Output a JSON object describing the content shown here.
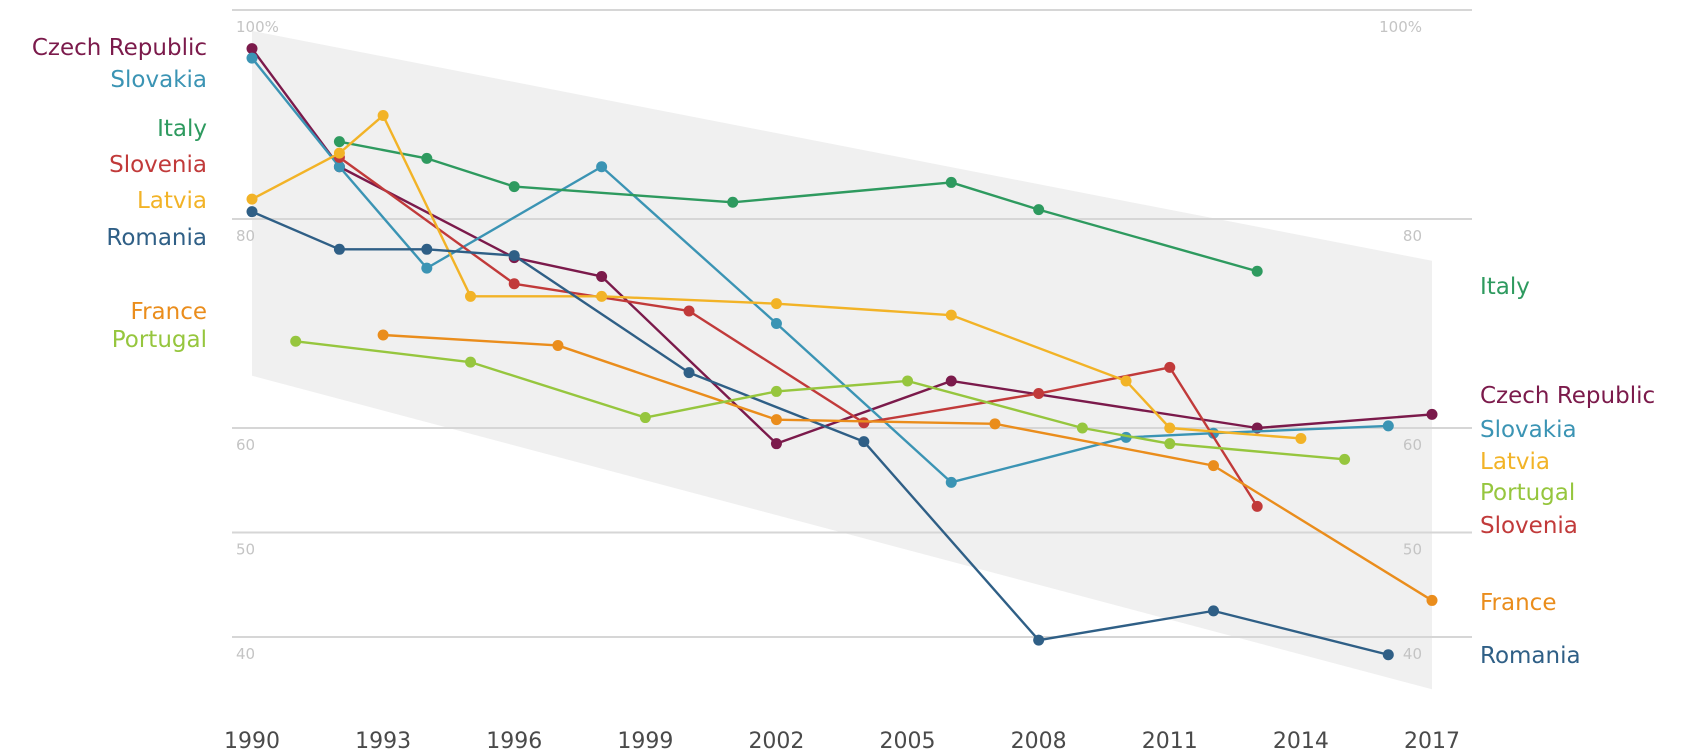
{
  "chart_data": {
    "type": "line",
    "title": "",
    "xlabel": "",
    "ylabel": "",
    "xlim": [
      1990,
      2017
    ],
    "ylim": [
      40,
      100
    ],
    "x_ticks": [
      "1990",
      "1993",
      "1996",
      "1999",
      "2002",
      "2005",
      "2008",
      "2011",
      "2014",
      "2017"
    ],
    "y_ticks": [
      {
        "value": 100,
        "left": "100%",
        "right": "100%"
      },
      {
        "value": 80,
        "left": "80",
        "right": "80"
      },
      {
        "value": 60,
        "left": "60",
        "right": "60"
      },
      {
        "value": 50,
        "left": "50",
        "right": "50"
      },
      {
        "value": 40,
        "left": "40",
        "right": "40"
      }
    ],
    "grid": true,
    "band": {
      "start": [
        [
          1990,
          98
        ],
        [
          1990,
          65
        ]
      ],
      "end": [
        [
          2017,
          76
        ],
        [
          2017,
          35
        ]
      ]
    },
    "series": [
      {
        "name": "Czech Republic",
        "color": "#7b1a4b",
        "x": [
          1990,
          1992,
          1996,
          1998,
          2002,
          2006,
          2013,
          2017
        ],
        "y": [
          96.3,
          85,
          76.3,
          74.5,
          58.5,
          64.5,
          60,
          61.3
        ]
      },
      {
        "name": "Slovakia",
        "color": "#3b94b4",
        "x": [
          1990,
          1992,
          1994,
          1998,
          2002,
          2006,
          2010,
          2012,
          2016
        ],
        "y": [
          95.4,
          85,
          75.3,
          85,
          70,
          54.8,
          59.1,
          59.5,
          60.2
        ]
      },
      {
        "name": "Italy",
        "color": "#2e9a5f",
        "x": [
          1992,
          1994,
          1996,
          2001,
          2006,
          2008,
          2013
        ],
        "y": [
          87.4,
          85.8,
          83.1,
          81.6,
          83.5,
          80.9,
          75
        ]
      },
      {
        "name": "Slovenia",
        "color": "#c13a3a",
        "x": [
          1992,
          1996,
          2000,
          2004,
          2008,
          2011,
          2013
        ],
        "y": [
          85.9,
          73.8,
          71.2,
          60.5,
          63.3,
          65.8,
          52.5
        ]
      },
      {
        "name": "Latvia",
        "color": "#f2b327",
        "x": [
          1990,
          1992,
          1993,
          1995,
          1998,
          2002,
          2006,
          2010,
          2011,
          2014
        ],
        "y": [
          81.9,
          86.3,
          89.9,
          72.6,
          72.6,
          71.9,
          70.8,
          64.5,
          60,
          59
        ]
      },
      {
        "name": "Romania",
        "color": "#2f5f86",
        "x": [
          1990,
          1992,
          1994,
          1996,
          2000,
          2004,
          2008,
          2012,
          2016
        ],
        "y": [
          80.7,
          77.1,
          77.1,
          76.5,
          65.3,
          58.7,
          39.7,
          42.5,
          38.3
        ]
      },
      {
        "name": "France",
        "color": "#ea8d1c",
        "x": [
          1993,
          1997,
          2002,
          2007,
          2012,
          2017
        ],
        "y": [
          68.9,
          67.9,
          60.8,
          60.4,
          56.4,
          43.5
        ]
      },
      {
        "name": "Portugal",
        "color": "#96c63e",
        "x": [
          1991,
          1995,
          1999,
          2002,
          2005,
          2009,
          2011,
          2015
        ],
        "y": [
          68.3,
          66.3,
          61.0,
          63.5,
          64.5,
          60.0,
          58.5,
          57.0
        ]
      }
    ],
    "left_labels": [
      "Czech Republic",
      "Slovakia",
      "Italy",
      "Slovenia",
      "Latvia",
      "Romania",
      "France",
      "Portugal"
    ],
    "right_labels": [
      "Italy",
      "Czech Republic",
      "Slovakia",
      "Latvia",
      "Portugal",
      "Slovenia",
      "France",
      "Romania"
    ]
  }
}
